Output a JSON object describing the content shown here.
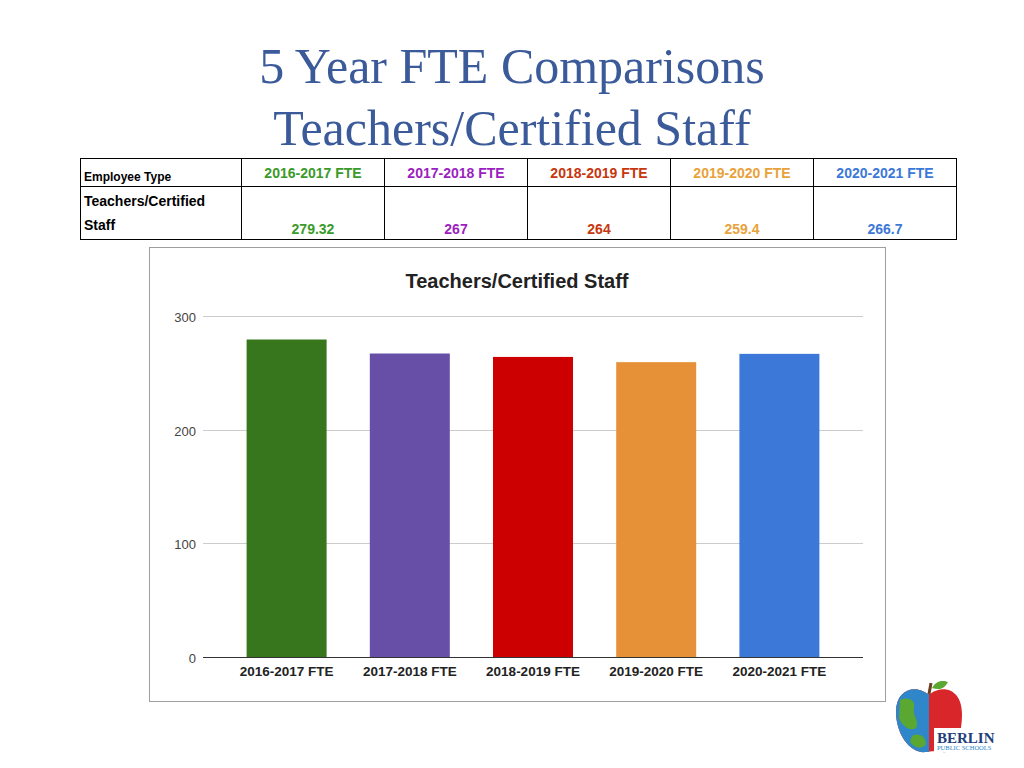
{
  "header": {
    "title": [
      "5 Year FTE Comparisons",
      "Teachers/Certified Staff"
    ]
  },
  "table": {
    "header": [
      "Employee Type",
      "2016-2017 FTE",
      "2017-2018 FTE",
      "2018-2019 FTE",
      "2019-2020 FTE",
      "2020-2021 FTE"
    ],
    "rows": [
      [
        "Teachers/Certified Staff",
        279.32,
        267,
        264,
        259.4,
        266.7
      ]
    ]
  },
  "chart_data": {
    "type": "bar",
    "title": "Teachers/Certified Staff",
    "categories": [
      "2016-2017 FTE",
      "2017-2018 FTE",
      "2018-2019 FTE",
      "2019-2020 FTE",
      "2020-2021 FTE"
    ],
    "values": [
      279.32,
      267,
      264,
      259.4,
      266.7
    ],
    "colors": [
      "#38761d",
      "#674ea7",
      "#cc0000",
      "#e69138",
      "#3c78d8"
    ],
    "ylim": [
      0,
      300
    ],
    "yticks": [
      0,
      100,
      200,
      300
    ],
    "grid": true
  },
  "logo": {
    "name": "BERLIN",
    "subtitle": "PUBLIC SCHOOLS"
  }
}
